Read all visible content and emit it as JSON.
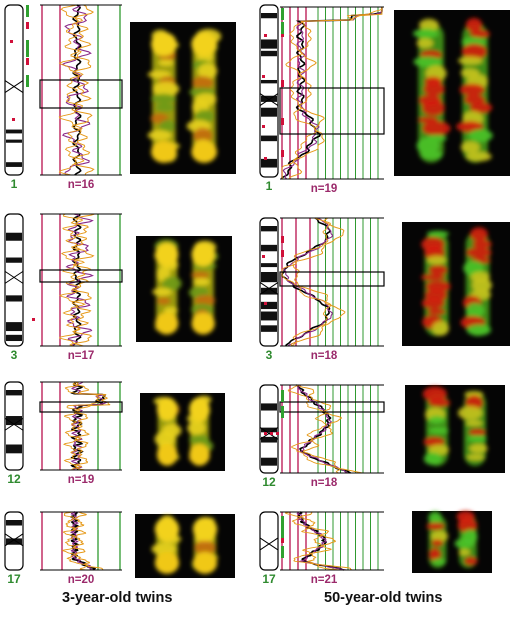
{
  "colors": {
    "red_line": "#b8114f",
    "green_line": "#2f9a2f",
    "chromosome_label": "#2f8a2f",
    "n_label": "#9b2a6b",
    "orange_trace": "#e69a1a",
    "purple_trace": "#8a2b8a",
    "black_trace": "#000000",
    "ideogram_marks": "#d0103a",
    "green_marks": "#2fa02f"
  },
  "captions": {
    "left": "3-year-old twins",
    "right": "50-year-old twins"
  },
  "panels": [
    {
      "chromosome": "1",
      "n": "n=16",
      "cohort": "3-year-old",
      "image_style": "yellow"
    },
    {
      "chromosome": "1",
      "n": "n=19",
      "cohort": "50-year-old",
      "image_style": "red"
    },
    {
      "chromosome": "3",
      "n": "n=17",
      "cohort": "3-year-old",
      "image_style": "yellow"
    },
    {
      "chromosome": "3",
      "n": "n=18",
      "cohort": "50-year-old",
      "image_style": "red"
    },
    {
      "chromosome": "12",
      "n": "n=19",
      "cohort": "3-year-old",
      "image_style": "yellow"
    },
    {
      "chromosome": "12",
      "n": "n=18",
      "cohort": "50-year-old",
      "image_style": "red"
    },
    {
      "chromosome": "17",
      "n": "n=20",
      "cohort": "3-year-old",
      "image_style": "yellow"
    },
    {
      "chromosome": "17",
      "n": "n=21",
      "cohort": "50-year-old",
      "image_style": "red"
    }
  ]
}
